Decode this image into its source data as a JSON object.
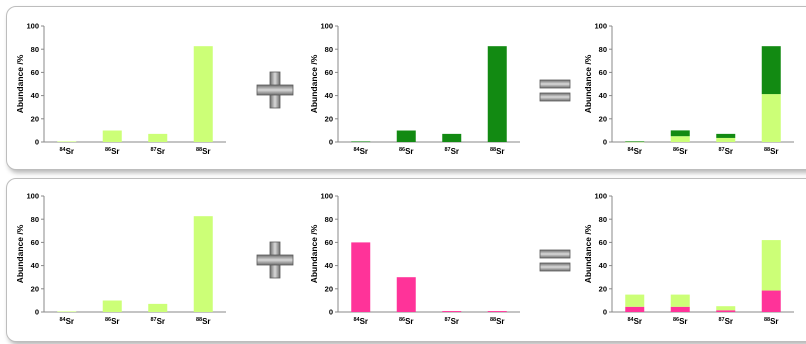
{
  "colors": {
    "light_green": "#ccff77",
    "dark_green": "#128a12",
    "pink": "#ff3399",
    "axis": "#888888",
    "operator_metal": "#8a8a8a"
  },
  "operators": {
    "plus_icon": "plus-sign-icon",
    "equals_icon": "equals-sign-icon"
  },
  "chart_data": [
    {
      "type": "bar",
      "id": "row1-left",
      "ylabel": "Abundance /%",
      "ylim": [
        0,
        100
      ],
      "yticks": [
        0,
        20,
        40,
        60,
        80,
        100
      ],
      "categories": [
        {
          "sup": "84",
          "base": "Sr"
        },
        {
          "sup": "86",
          "base": "Sr"
        },
        {
          "sup": "87",
          "base": "Sr"
        },
        {
          "sup": "88",
          "base": "Sr"
        }
      ],
      "series": [
        {
          "values": [
            0.5,
            9.9,
            7.0,
            82.6
          ],
          "color": "#ccff77"
        }
      ]
    },
    {
      "type": "bar",
      "id": "row1-middle",
      "ylabel": "Abundance /%",
      "ylim": [
        0,
        100
      ],
      "yticks": [
        0,
        20,
        40,
        60,
        80,
        100
      ],
      "categories": [
        {
          "sup": "84",
          "base": "Sr"
        },
        {
          "sup": "86",
          "base": "Sr"
        },
        {
          "sup": "87",
          "base": "Sr"
        },
        {
          "sup": "88",
          "base": "Sr"
        }
      ],
      "series": [
        {
          "values": [
            0.5,
            9.9,
            7.0,
            82.6
          ],
          "color": "#128a12"
        }
      ]
    },
    {
      "type": "bar",
      "stacked": true,
      "id": "row1-right",
      "ylabel": "Abundance /%",
      "ylim": [
        0,
        100
      ],
      "yticks": [
        0,
        20,
        40,
        60,
        80,
        100
      ],
      "categories": [
        {
          "sup": "84",
          "base": "Sr"
        },
        {
          "sup": "86",
          "base": "Sr"
        },
        {
          "sup": "87",
          "base": "Sr"
        },
        {
          "sup": "88",
          "base": "Sr"
        }
      ],
      "series": [
        {
          "values": [
            0.3,
            5.0,
            3.5,
            41.3
          ],
          "color": "#ccff77"
        },
        {
          "values": [
            0.3,
            5.0,
            3.5,
            41.3
          ],
          "color": "#128a12"
        }
      ]
    },
    {
      "type": "bar",
      "id": "row2-left",
      "ylabel": "Abundance /%",
      "ylim": [
        0,
        100
      ],
      "yticks": [
        0,
        20,
        40,
        60,
        80,
        100
      ],
      "categories": [
        {
          "sup": "84",
          "base": "Sr"
        },
        {
          "sup": "86",
          "base": "Sr"
        },
        {
          "sup": "87",
          "base": "Sr"
        },
        {
          "sup": "88",
          "base": "Sr"
        }
      ],
      "series": [
        {
          "values": [
            0.5,
            9.9,
            7.0,
            82.6
          ],
          "color": "#ccff77"
        }
      ]
    },
    {
      "type": "bar",
      "id": "row2-middle",
      "ylabel": "Abundance /%",
      "ylim": [
        0,
        100
      ],
      "yticks": [
        0,
        20,
        40,
        60,
        80,
        100
      ],
      "categories": [
        {
          "sup": "84",
          "base": "Sr"
        },
        {
          "sup": "86",
          "base": "Sr"
        },
        {
          "sup": "87",
          "base": "Sr"
        },
        {
          "sup": "88",
          "base": "Sr"
        }
      ],
      "series": [
        {
          "values": [
            60,
            30,
            0.8,
            0.8
          ],
          "color": "#ff3399"
        }
      ]
    },
    {
      "type": "bar",
      "stacked": true,
      "id": "row2-right",
      "ylabel": "Abundance /%",
      "ylim": [
        0,
        100
      ],
      "yticks": [
        0,
        20,
        40,
        60,
        80,
        100
      ],
      "categories": [
        {
          "sup": "84",
          "base": "Sr"
        },
        {
          "sup": "86",
          "base": "Sr"
        },
        {
          "sup": "87",
          "base": "Sr"
        },
        {
          "sup": "88",
          "base": "Sr"
        }
      ],
      "series": [
        {
          "values": [
            4.5,
            4.5,
            1.5,
            18.5
          ],
          "color": "#ff3399"
        },
        {
          "values": [
            10.5,
            10.5,
            3.5,
            43.5
          ],
          "color": "#ccff77"
        }
      ]
    }
  ]
}
